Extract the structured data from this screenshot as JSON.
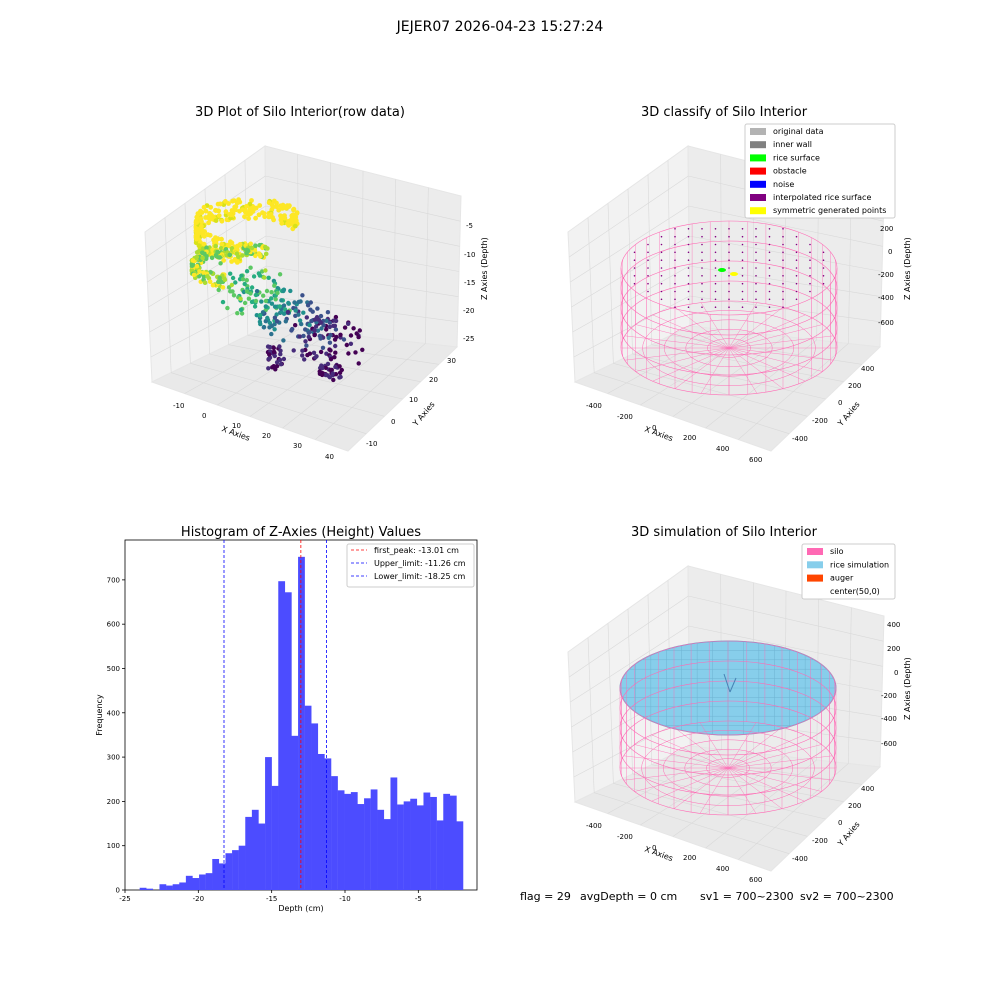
{
  "figure": {
    "suptitle": "JEJER07 2026-04-23 15:27:24",
    "footer": {
      "flag": "flag = 29",
      "avg_depth": "avgDepth = 0 cm",
      "sv1": "sv1 = 700~2300",
      "sv2": "sv2 = 700~2300"
    }
  },
  "chart_data": [
    {
      "type": "scatter",
      "title": "3D Plot of Silo Interior(row data)",
      "xlabel": "X Axies",
      "ylabel": "Y Axies",
      "zlabel": "Z Axies (Depth)",
      "x_ticks": [
        "-10",
        "0",
        "10",
        "20",
        "30",
        "40"
      ],
      "y_ticks": [
        "-10",
        "0",
        "10",
        "20",
        "30"
      ],
      "z_ticks": [
        "-5",
        "-10",
        "-15",
        "-20",
        "-25"
      ],
      "xlim": [
        -15,
        42
      ],
      "ylim": [
        -15,
        32
      ],
      "zlim": [
        -26,
        -2
      ],
      "colormap": "viridis (depth-coded)",
      "grid": true
    },
    {
      "type": "scatter",
      "title": "3D classify of Silo Interior",
      "xlabel": "X Axies",
      "ylabel": "Y Axies",
      "zlabel": "Z Axies (Depth)",
      "x_ticks": [
        "-400",
        "-200",
        "0",
        "200",
        "400",
        "600"
      ],
      "y_ticks": [
        "-400",
        "-200",
        "0",
        "200",
        "400"
      ],
      "z_ticks": [
        "200",
        "0",
        "-200",
        "-400",
        "-600"
      ],
      "legend": [
        {
          "label": "original data",
          "color": "#b3b3b3"
        },
        {
          "label": "inner wall",
          "color": "#808080"
        },
        {
          "label": "rice surface",
          "color": "#00ff00"
        },
        {
          "label": "obstacle",
          "color": "#ff0000"
        },
        {
          "label": "noise",
          "color": "#0000ff"
        },
        {
          "label": "interpolated rice surface",
          "color": "#800080"
        },
        {
          "label": "symmetric generated points",
          "color": "#ffff00"
        }
      ],
      "legend_position": "top-right",
      "grid": true
    },
    {
      "type": "bar",
      "title": "Histogram of Z-Axies (Height) Values",
      "xlabel": "Depth (cm)",
      "ylabel": "Frequency",
      "xlim": [
        -25,
        -1
      ],
      "ylim": [
        0,
        790
      ],
      "x_ticks": [
        -25,
        -20,
        -15,
        -10,
        -5
      ],
      "y_ticks": [
        0,
        100,
        200,
        300,
        400,
        500,
        600,
        700
      ],
      "bin_start": -24.0,
      "bin_width": 0.45,
      "bar_color": "#4c4cff",
      "values": [
        5,
        3,
        0,
        13,
        10,
        13,
        17,
        32,
        27,
        35,
        38,
        70,
        60,
        83,
        90,
        100,
        165,
        181,
        150,
        300,
        235,
        697,
        672,
        348,
        752,
        416,
        376,
        307,
        297,
        257,
        225,
        217,
        221,
        194,
        207,
        227,
        181,
        160,
        254,
        193,
        200,
        206,
        191,
        220,
        210,
        157,
        217,
        213,
        155
      ],
      "vlines": [
        {
          "label": "first_peak: -13.01 cm",
          "x": -13.01,
          "color": "#ff0000"
        },
        {
          "label": "Upper_limit: -11.26 cm",
          "x": -11.26,
          "color": "#0000ff"
        },
        {
          "label": "Lower_limit: -18.25 cm",
          "x": -18.25,
          "color": "#0000ff"
        }
      ],
      "legend_position": "top-right"
    },
    {
      "type": "scatter",
      "title": "3D simulation of Silo Interior",
      "xlabel": "X Axies",
      "ylabel": "Y Axies",
      "zlabel": "Z Axies (Depth)",
      "x_ticks": [
        "-400",
        "-200",
        "0",
        "200",
        "400",
        "600"
      ],
      "y_ticks": [
        "-400",
        "-200",
        "0",
        "200",
        "400"
      ],
      "z_ticks": [
        "400",
        "200",
        "0",
        "-200",
        "-400",
        "-600"
      ],
      "legend": [
        {
          "label": "silo",
          "color": "#ff69b4"
        },
        {
          "label": "rice simulation",
          "color": "#87ceeb"
        },
        {
          "label": "auger",
          "color": "#ff4500"
        },
        {
          "label": "center(50,0)",
          "color": ""
        }
      ],
      "legend_position": "top-right",
      "grid": true
    }
  ]
}
